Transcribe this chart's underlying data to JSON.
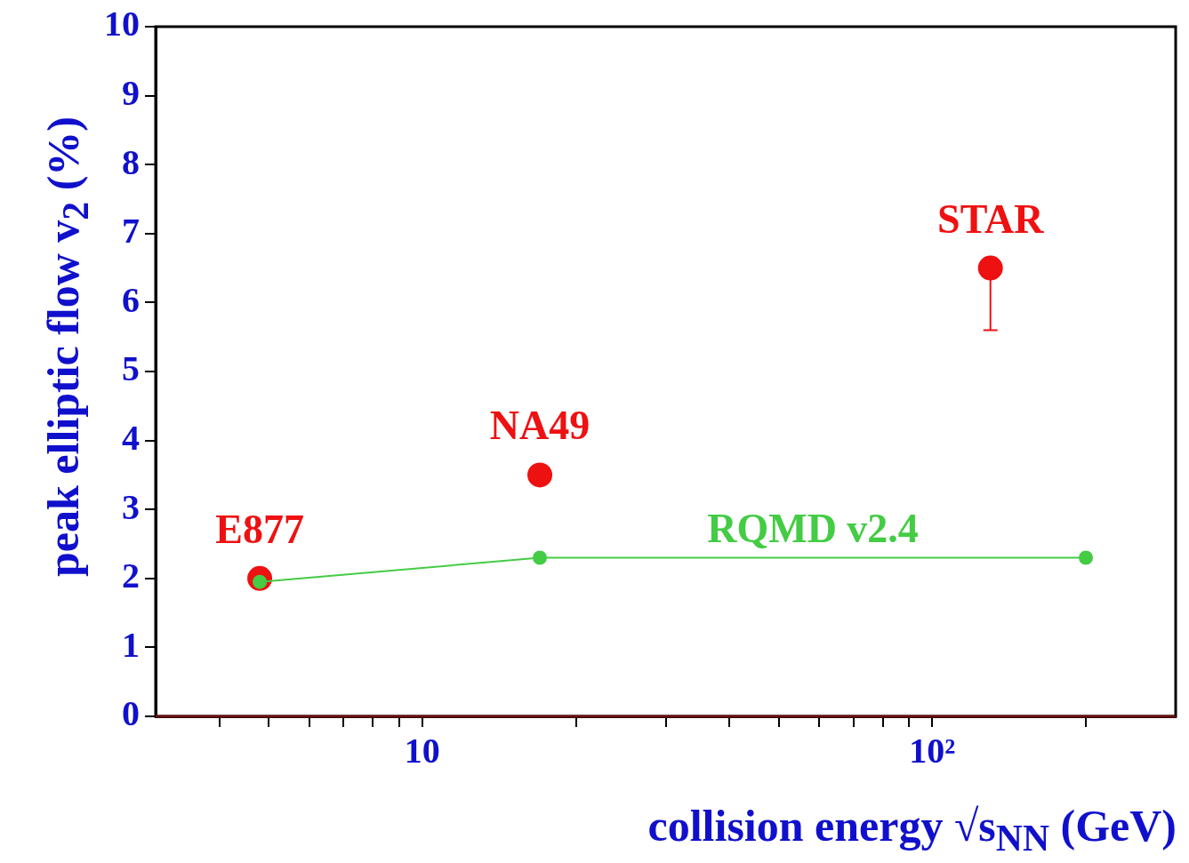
{
  "chart_data": {
    "type": "scatter",
    "xlabel": "collision energy  √s$_{NN}$ (GeV)",
    "ylabel": "peak elliptic flow  v$_{2}$ (%)",
    "log": "x",
    "xlim": [
      3,
      300
    ],
    "ylim": [
      0,
      10
    ],
    "xticks": [
      {
        "value": 4,
        "label": null
      },
      {
        "value": 5,
        "label": null
      },
      {
        "value": 6,
        "label": null
      },
      {
        "value": 7,
        "label": null
      },
      {
        "value": 8,
        "label": null
      },
      {
        "value": 9,
        "label": null
      },
      {
        "value": 10,
        "label": "10"
      },
      {
        "value": 20,
        "label": null
      },
      {
        "value": 30,
        "label": null
      },
      {
        "value": 40,
        "label": null
      },
      {
        "value": 50,
        "label": null
      },
      {
        "value": 60,
        "label": null
      },
      {
        "value": 70,
        "label": null
      },
      {
        "value": 80,
        "label": null
      },
      {
        "value": 90,
        "label": null
      },
      {
        "value": 100,
        "label": "10²"
      },
      {
        "value": 200,
        "label": null
      }
    ],
    "yticks": [
      0,
      1,
      2,
      3,
      4,
      5,
      6,
      7,
      8,
      9,
      10
    ],
    "grid": false,
    "legend": false,
    "series": [
      {
        "color": "#ee1111",
        "marker": "circle",
        "x": [
          4.8,
          17,
          130
        ],
        "values": [
          2.0,
          3.5,
          6.5
        ],
        "errors": [
          null,
          null,
          [
            5.6,
            6.5
          ]
        ]
      },
      {
        "type": "line",
        "name": "RQMD v2.4",
        "color": "#44cc44",
        "marker": "circle",
        "x": [
          4.8,
          17,
          200
        ],
        "values": [
          1.95,
          2.3,
          2.3
        ]
      }
    ],
    "annotations": [
      {
        "text": "E877",
        "x": 4.8,
        "y": 2.0
      },
      {
        "text": "NA49",
        "x": 17,
        "y": 3.5
      },
      {
        "text": "STAR",
        "x": 130,
        "y": 6.5
      }
    ]
  }
}
